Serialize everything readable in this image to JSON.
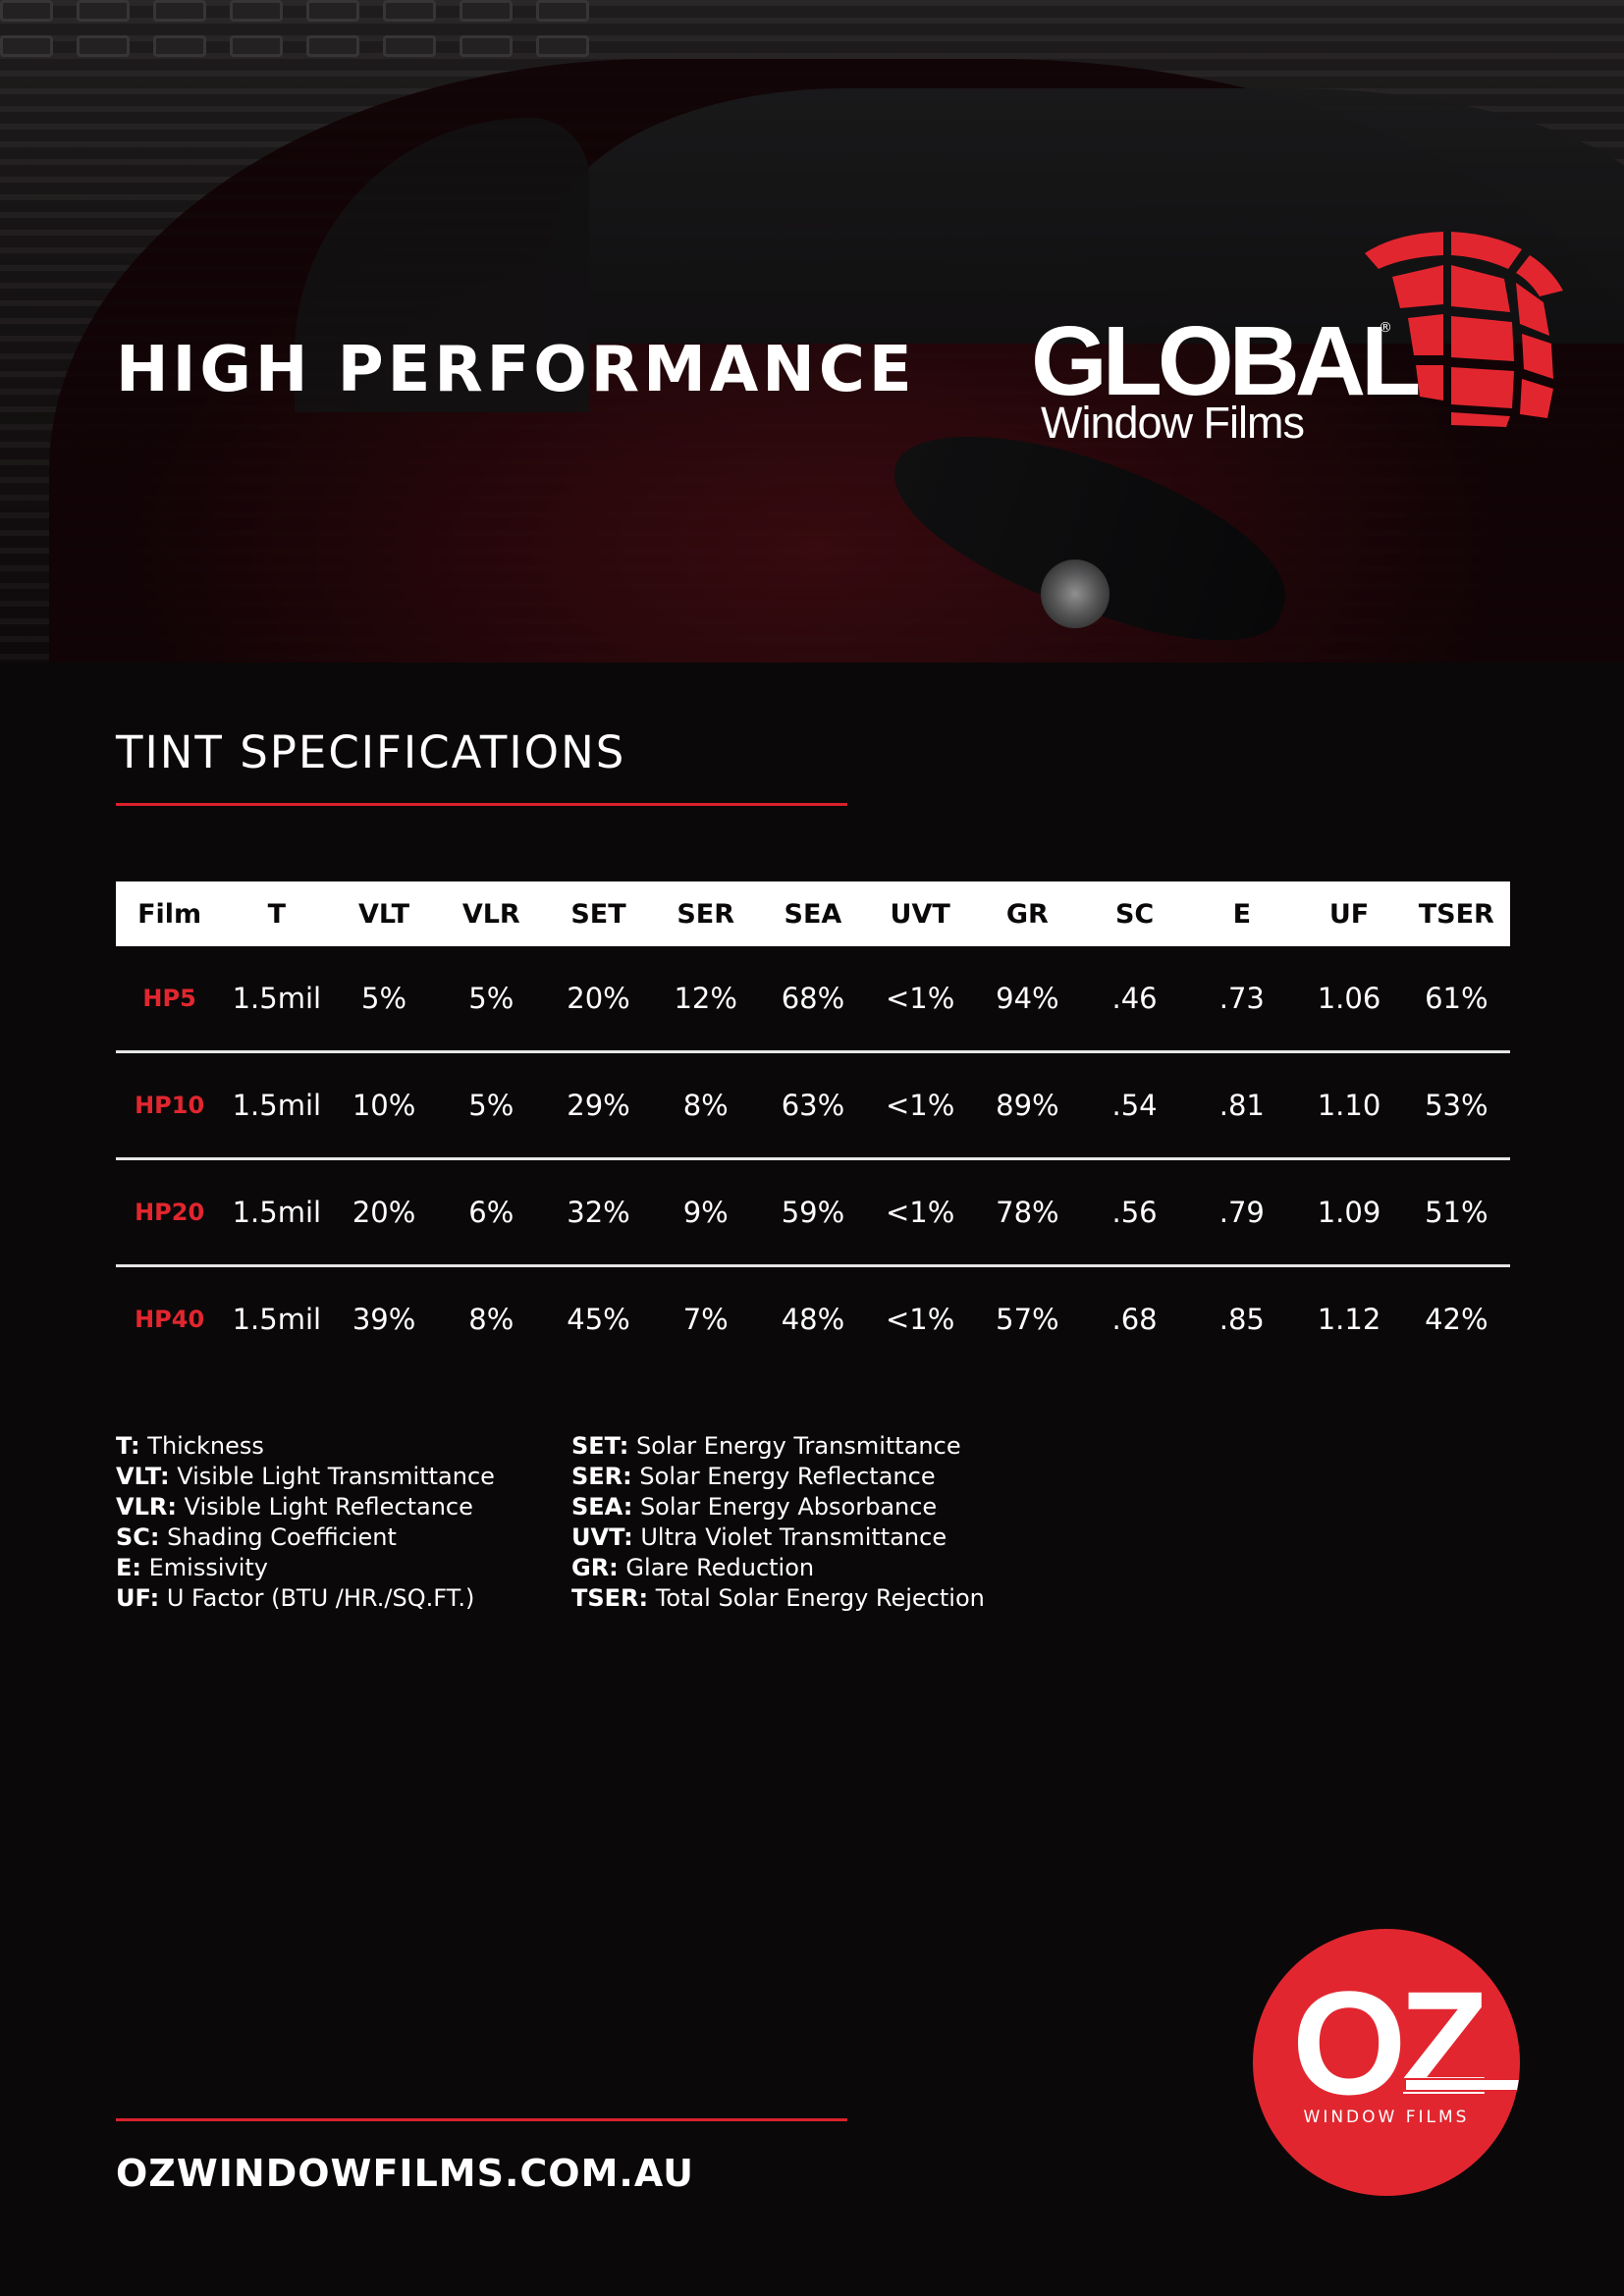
{
  "hero": {
    "title": "HIGH PERFORMANCE",
    "brand_name": "GLOBAL",
    "brand_sub": "Window Films",
    "brand_reg": "®"
  },
  "specs": {
    "title": "TINT SPECIFICATIONS",
    "headers": [
      "Film",
      "T",
      "VLT",
      "VLR",
      "SET",
      "SER",
      "SEA",
      "UVT",
      "GR",
      "SC",
      "E",
      "UF",
      "TSER"
    ],
    "rows": [
      [
        "HP5",
        "1.5mil",
        "5%",
        "5%",
        "20%",
        "12%",
        "68%",
        "<1%",
        "94%",
        ".46",
        ".73",
        "1.06",
        "61%"
      ],
      [
        "HP10",
        "1.5mil",
        "10%",
        "5%",
        "29%",
        "8%",
        "63%",
        "<1%",
        "89%",
        ".54",
        ".81",
        "1.10",
        "53%"
      ],
      [
        "HP20",
        "1.5mil",
        "20%",
        "6%",
        "32%",
        "9%",
        "59%",
        "<1%",
        "78%",
        ".56",
        ".79",
        "1.09",
        "51%"
      ],
      [
        "HP40",
        "1.5mil",
        "39%",
        "8%",
        "45%",
        "7%",
        "48%",
        "<1%",
        "57%",
        ".68",
        ".85",
        "1.12",
        "42%"
      ]
    ]
  },
  "legend": {
    "left": [
      {
        "abbr": "T:",
        "desc": "Thickness"
      },
      {
        "abbr": "VLT:",
        "desc": "Visible Light Transmittance"
      },
      {
        "abbr": "VLR:",
        "desc": "Visible Light Reflectance"
      },
      {
        "abbr": "SC:",
        "desc": "Shading Coefficient"
      },
      {
        "abbr": "E:",
        "desc": "Emissivity"
      },
      {
        "abbr": "UF:",
        "desc": "U Factor (BTU /HR./SQ.FT.)"
      }
    ],
    "right": [
      {
        "abbr": "SET:",
        "desc": "Solar Energy Transmittance"
      },
      {
        "abbr": "SER:",
        "desc": "Solar Energy Reflectance"
      },
      {
        "abbr": "SEA:",
        "desc": "Solar Energy Absorbance"
      },
      {
        "abbr": "UVT:",
        "desc": "Ultra Violet Transmittance"
      },
      {
        "abbr": "GR:",
        "desc": "Glare Reduction"
      },
      {
        "abbr": "TSER:",
        "desc": "Total Solar Energy Rejection"
      }
    ]
  },
  "footer": {
    "url": "OZWINDOWFILMS.COM.AU",
    "badge_name": "OZ",
    "badge_sub": "WINDOW FILMS"
  },
  "colors": {
    "accent": "#e2262f",
    "background": "#0a0809",
    "text": "#ffffff"
  },
  "icons": {
    "brand_mark": "global-globe-grid-icon",
    "footer_mark": "oz-badge-logo"
  }
}
